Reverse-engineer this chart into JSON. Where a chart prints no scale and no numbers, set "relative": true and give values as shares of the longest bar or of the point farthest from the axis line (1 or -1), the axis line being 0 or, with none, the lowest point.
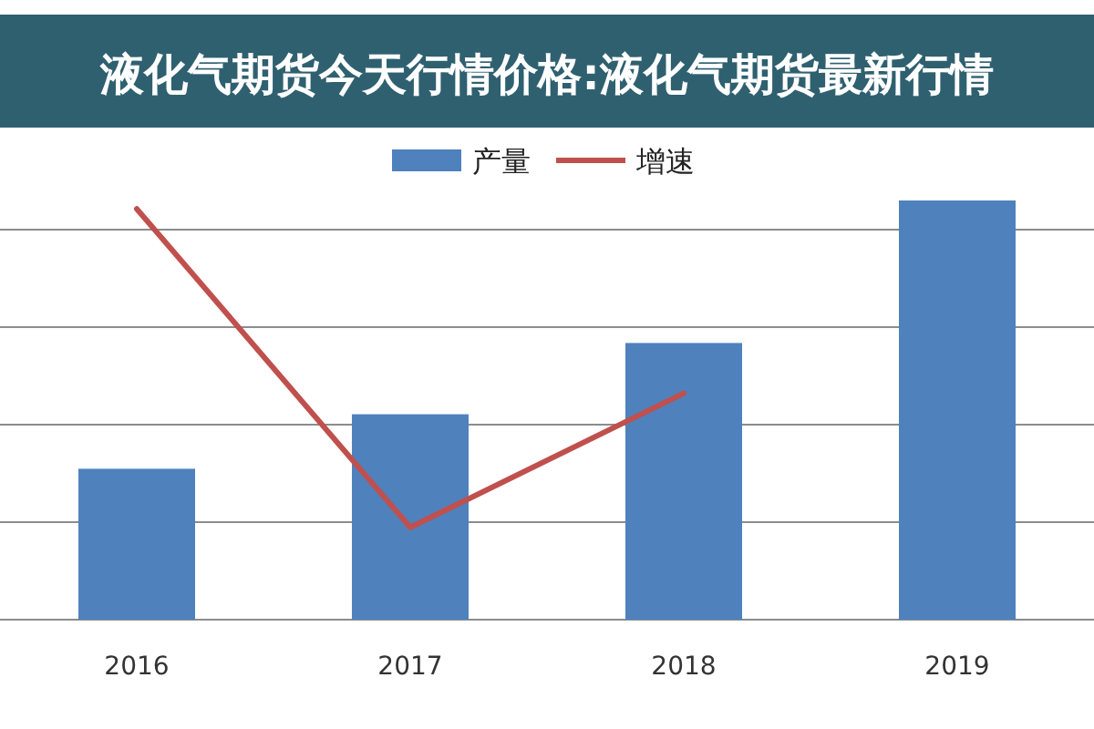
{
  "chart_data": {
    "type": "bar",
    "title": "液化气期货今天行情价格:液化气期货最新行情",
    "categories": [
      "2016",
      "2017",
      "2018",
      "2019"
    ],
    "relative": true,
    "grid": "y",
    "legend": "top",
    "series": [
      {
        "name": "产量",
        "color": "#4f81bd",
        "values": [
          0.36,
          0.49,
          0.66,
          1
        ]
      },
      {
        "name": "增速",
        "type": "line",
        "color": "#c0504d",
        "values": [
          0.98,
          0.22,
          0.54,
          null
        ]
      }
    ]
  }
}
